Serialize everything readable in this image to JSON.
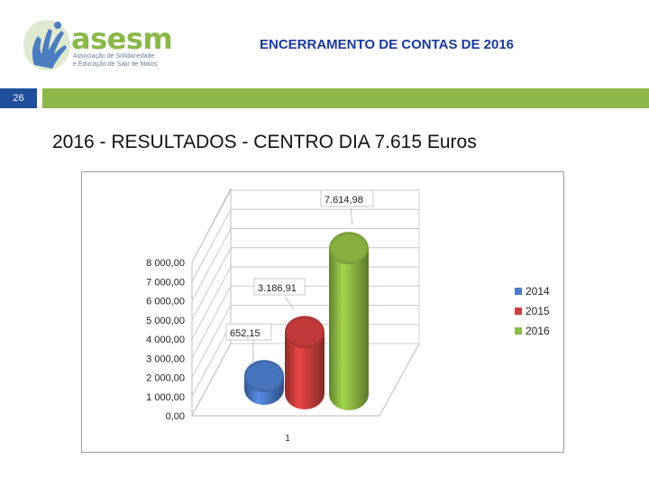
{
  "header": {
    "logo_name": "asesm",
    "logo_line1": "Associação de Solidariedade",
    "logo_line2": "e Educação de Salir de Matos",
    "title": "ENCERRAMENTO DE CONTAS DE 2016",
    "slide_number": "26"
  },
  "main_title": "2016  -  RESULTADOS  - CENTRO DIA   7.615 Euros",
  "colors": {
    "blue": "#4a7bc8",
    "red": "#cd3d3d",
    "green": "#8fba44",
    "accent_green": "#8fb84b",
    "title_blue": "#1a3a9c"
  },
  "chart_data": {
    "type": "bar",
    "style": "3d-cylinder",
    "categories": [
      "1"
    ],
    "series": [
      {
        "name": "2014",
        "values": [
          652.15
        ],
        "label": "652,15",
        "color": "#4a7bc8"
      },
      {
        "name": "2015",
        "values": [
          3186.91
        ],
        "label": "3.186,91",
        "color": "#cd3d3d"
      },
      {
        "name": "2016",
        "values": [
          7614.98
        ],
        "label": "7.614,98",
        "color": "#8fba44"
      }
    ],
    "y_ticks": [
      "0,00",
      "1 000,00",
      "2 000,00",
      "3 000,00",
      "4 000,00",
      "5 000,00",
      "6 000,00",
      "7 000,00",
      "8 000,00"
    ],
    "ylim": [
      0,
      8000
    ],
    "grid": true,
    "legend_position": "right"
  }
}
